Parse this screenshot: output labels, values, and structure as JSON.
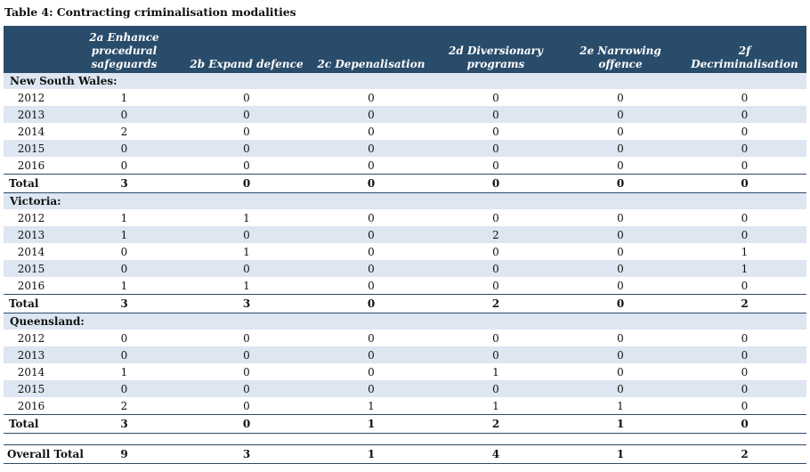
{
  "title": "Table 4: Contracting criminalisation modalities",
  "columns": [
    "",
    "2a Enhance\nprocedural\nsafeguards",
    "2b Expand defence",
    "2c Depenalisation",
    "2d Diversionary\nprograms",
    "2e Narrowing\noffence",
    "2f\nDecriminalisation"
  ],
  "sections": [
    {
      "name": "New South Wales:",
      "rows": [
        {
          "year": "2012",
          "values": [
            "1",
            "0",
            "0",
            "0",
            "0",
            "0"
          ]
        },
        {
          "year": "2013",
          "values": [
            "0",
            "0",
            "0",
            "0",
            "0",
            "0"
          ]
        },
        {
          "year": "2014",
          "values": [
            "2",
            "0",
            "0",
            "0",
            "0",
            "0"
          ]
        },
        {
          "year": "2015",
          "values": [
            "0",
            "0",
            "0",
            "0",
            "0",
            "0"
          ]
        },
        {
          "year": "2016",
          "values": [
            "0",
            "0",
            "0",
            "0",
            "0",
            "0"
          ]
        }
      ],
      "total_label": "Total",
      "total": [
        "3",
        "0",
        "0",
        "0",
        "0",
        "0"
      ]
    },
    {
      "name": "Victoria:",
      "rows": [
        {
          "year": "2012",
          "values": [
            "1",
            "1",
            "0",
            "0",
            "0",
            "0"
          ]
        },
        {
          "year": "2013",
          "values": [
            "1",
            "0",
            "0",
            "2",
            "0",
            "0"
          ]
        },
        {
          "year": "2014",
          "values": [
            "0",
            "1",
            "0",
            "0",
            "0",
            "1"
          ]
        },
        {
          "year": "2015",
          "values": [
            "0",
            "0",
            "0",
            "0",
            "0",
            "1"
          ]
        },
        {
          "year": "2016",
          "values": [
            "1",
            "1",
            "0",
            "0",
            "0",
            "0"
          ]
        }
      ],
      "total_label": "Total",
      "total": [
        "3",
        "3",
        "0",
        "2",
        "0",
        "2"
      ]
    },
    {
      "name": "Queensland:",
      "rows": [
        {
          "year": "2012",
          "values": [
            "0",
            "0",
            "0",
            "0",
            "0",
            "0"
          ]
        },
        {
          "year": "2013",
          "values": [
            "0",
            "0",
            "0",
            "0",
            "0",
            "0"
          ]
        },
        {
          "year": "2014",
          "values": [
            "1",
            "0",
            "0",
            "1",
            "0",
            "0"
          ]
        },
        {
          "year": "2015",
          "values": [
            "0",
            "0",
            "0",
            "0",
            "0",
            "0"
          ]
        },
        {
          "year": "2016",
          "values": [
            "2",
            "0",
            "1",
            "1",
            "1",
            "0"
          ]
        }
      ],
      "total_label": "Total",
      "total": [
        "3",
        "0",
        "1",
        "2",
        "1",
        "0"
      ]
    }
  ],
  "overall": {
    "label": "Overall Total",
    "values": [
      "9",
      "3",
      "1",
      "4",
      "1",
      "2"
    ]
  },
  "colors": {
    "header_bg": "#2a4c6b",
    "stripe_bg": "#dde6f1",
    "rule": "#2a4c6b"
  }
}
